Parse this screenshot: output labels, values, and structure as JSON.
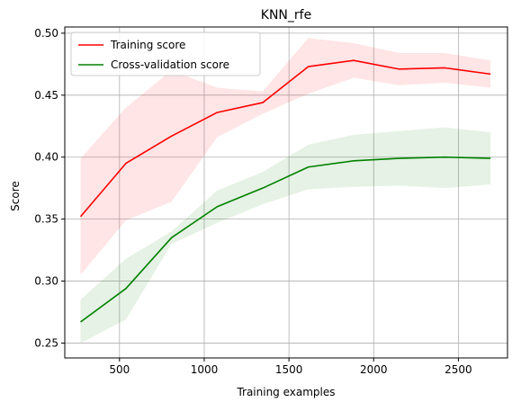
{
  "chart_data": {
    "type": "line",
    "title": "KNN_rfe",
    "xlabel": "Training examples",
    "ylabel": "Score",
    "xlim": [
      177,
      2790
    ],
    "ylim": [
      0.238,
      0.505
    ],
    "x_ticks": [
      500,
      1000,
      1500,
      2000,
      2500
    ],
    "y_ticks": [
      0.25,
      0.3,
      0.35,
      0.4,
      0.45,
      0.5
    ],
    "grid": true,
    "legend_position": "top-left",
    "x": [
      270,
      538,
      807,
      1076,
      1345,
      1614,
      1882,
      2151,
      2420,
      2690
    ],
    "series": [
      {
        "name": "Training score",
        "color": "#ff0000",
        "band_color": "#ff0000",
        "values": [
          0.352,
          0.395,
          0.417,
          0.436,
          0.444,
          0.473,
          0.478,
          0.471,
          0.472,
          0.467
        ],
        "upper": [
          0.399,
          0.44,
          0.47,
          0.456,
          0.453,
          0.496,
          0.492,
          0.484,
          0.484,
          0.478
        ],
        "lower": [
          0.305,
          0.349,
          0.364,
          0.416,
          0.435,
          0.451,
          0.464,
          0.458,
          0.46,
          0.456
        ]
      },
      {
        "name": "Cross-validation score",
        "color": "#008000",
        "band_color": "#008000",
        "values": [
          0.267,
          0.294,
          0.335,
          0.36,
          0.375,
          0.392,
          0.397,
          0.399,
          0.4,
          0.399
        ],
        "upper": [
          0.285,
          0.318,
          0.34,
          0.373,
          0.388,
          0.41,
          0.418,
          0.421,
          0.424,
          0.42
        ],
        "lower": [
          0.25,
          0.269,
          0.33,
          0.347,
          0.362,
          0.374,
          0.376,
          0.377,
          0.375,
          0.378
        ]
      }
    ]
  }
}
